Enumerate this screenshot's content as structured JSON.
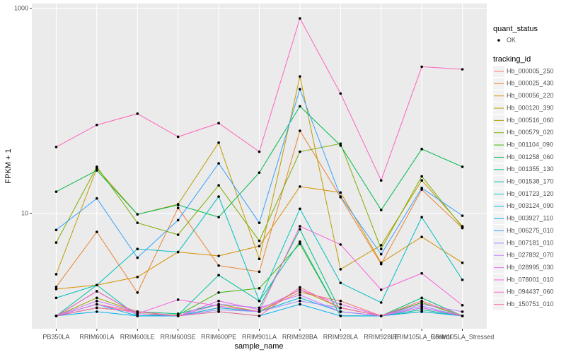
{
  "chart_data": {
    "type": "line",
    "x_label": "sample_name",
    "y_label": "FPKM + 1",
    "categories": [
      "PB350LA",
      "RRIM600LA",
      "RRIM600LE",
      "RRIM600SE",
      "RRIM600PE",
      "RRIM901LA",
      "RRIM928BA",
      "RRIM928LA",
      "RRIM928LE",
      "RRIM105LA_Control",
      "RRIM105LA_Stressed"
    ],
    "ylim": [
      0.75,
      1117
    ],
    "yticks": [
      10,
      1000
    ],
    "log_y": true,
    "grid": true,
    "point_legend": {
      "title": "quant_status",
      "labels": [
        "OK"
      ]
    },
    "legend_title": "tracking_id",
    "series": [
      {
        "name": "Hb_000005_250",
        "color": "#F8766D",
        "values": [
          1.0,
          1.3,
          1.1,
          1.0,
          1.2,
          1.1,
          1.7,
          1.4,
          1.0,
          1.2,
          1.0
        ]
      },
      {
        "name": "Hb_000025_430",
        "color": "#EA8331",
        "values": [
          1.92,
          6.6,
          1.69,
          11.3,
          3.1,
          2.7,
          64,
          14.4,
          3.2,
          17.1,
          7.2
        ]
      },
      {
        "name": "Hb_000056_220",
        "color": "#D89000",
        "values": [
          1.83,
          2.0,
          2.4,
          4.2,
          3.85,
          4.8,
          18.3,
          16,
          3.3,
          5.9,
          3.3
        ]
      },
      {
        "name": "Hb_000120_390",
        "color": "#C09B00",
        "values": [
          2.55,
          27.6,
          9.8,
          12.3,
          49,
          3.6,
          217,
          2.85,
          4.9,
          21,
          7.5
        ]
      },
      {
        "name": "Hb_000516_060",
        "color": "#A3A500",
        "values": [
          1.0,
          1.5,
          1.1,
          1.0,
          1.3,
          1.1,
          1.8,
          1.2,
          1.0,
          1.1,
          1.0
        ]
      },
      {
        "name": "Hb_000579_020",
        "color": "#7CAE00",
        "values": [
          5.2,
          28.5,
          8.1,
          6.2,
          18.8,
          5.4,
          40,
          48,
          4.5,
          23,
          7.3
        ]
      },
      {
        "name": "Hb_001104_090",
        "color": "#39B600",
        "values": [
          1.0,
          1.74,
          1.05,
          1.02,
          1.69,
          1.86,
          5.05,
          1.0,
          1.0,
          1.35,
          1.0
        ]
      },
      {
        "name": "Hb_001258_060",
        "color": "#00BB4E",
        "values": [
          16.3,
          26.3,
          9.8,
          12.1,
          9.2,
          25,
          111,
          46,
          10.8,
          42.5,
          28.5
        ]
      },
      {
        "name": "Hb_001355_130",
        "color": "#00BF7D",
        "values": [
          1.0,
          1.2,
          1.1,
          1.05,
          1.3,
          1.2,
          7.0,
          1.1,
          1.0,
          1.5,
          1.0
        ]
      },
      {
        "name": "Hb_001538_170",
        "color": "#00C1A3",
        "values": [
          1.0,
          2.0,
          1.0,
          1.02,
          2.5,
          1.4,
          5.3,
          1.0,
          1.0,
          1.15,
          1.0
        ]
      },
      {
        "name": "Hb_001723_120",
        "color": "#00BFC4",
        "values": [
          1.5,
          2.0,
          4.5,
          4.2,
          14.6,
          1.4,
          11.1,
          2.1,
          1.35,
          9.2,
          2.25
        ]
      },
      {
        "name": "Hb_003124_090",
        "color": "#00BAE0",
        "values": [
          1.0,
          1.3,
          1.0,
          1.0,
          1.2,
          1.1,
          1.5,
          1.1,
          1.0,
          1.2,
          1.0
        ]
      },
      {
        "name": "Hb_003927_110",
        "color": "#00B0F6",
        "values": [
          1.0,
          1.1,
          1.0,
          1.0,
          1.1,
          1.0,
          1.3,
          1.0,
          1.0,
          1.1,
          1.0
        ]
      },
      {
        "name": "Hb_006275_010",
        "color": "#35A2FF",
        "values": [
          6.9,
          14,
          3.7,
          8.6,
          30.8,
          8.1,
          163,
          14.6,
          4.0,
          17.7,
          9.5
        ]
      },
      {
        "name": "Hb_007181_010",
        "color": "#9590FF",
        "values": [
          1.0,
          1.2,
          1.1,
          1.0,
          1.15,
          1.1,
          1.4,
          1.2,
          1.0,
          1.25,
          1.0
        ]
      },
      {
        "name": "Hb_027892_070",
        "color": "#C77CFF",
        "values": [
          1.0,
          1.4,
          1.1,
          1.0,
          1.3,
          1.2,
          1.6,
          1.1,
          1.0,
          1.3,
          1.1
        ]
      },
      {
        "name": "Hb_028995_030",
        "color": "#E76BF3",
        "values": [
          1.0,
          1.3,
          1.05,
          1.0,
          1.4,
          1.15,
          1.8,
          1.3,
          1.0,
          1.2,
          1.0
        ]
      },
      {
        "name": "Hb_078001_010",
        "color": "#FA62DB",
        "values": [
          1.0,
          1.74,
          1.05,
          1.44,
          1.25,
          1.1,
          7.5,
          4.97,
          1.8,
          2.6,
          1.27
        ]
      },
      {
        "name": "Hb_094437_060",
        "color": "#FF62BC",
        "values": [
          44.5,
          73,
          94,
          56,
          76,
          40,
          800,
          148,
          21,
          270,
          255
        ]
      },
      {
        "name": "Hb_150751_010",
        "color": "#FF6C91",
        "values": [
          1.0,
          1.2,
          1.1,
          1.0,
          1.1,
          1.0,
          1.9,
          1.2,
          1.0,
          1.4,
          1.0
        ]
      }
    ]
  }
}
